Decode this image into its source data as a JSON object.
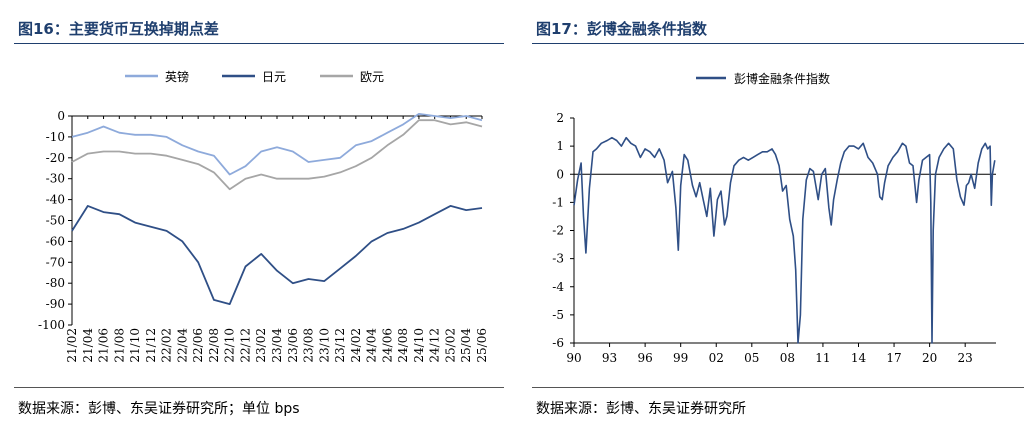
{
  "left": {
    "title": "图16：主要货币互换掉期点差",
    "source": "数据来源：彭博、东吴证券研究所；单位 bps"
  },
  "right": {
    "title": "图17：彭博金融条件指数",
    "source": "数据来源：彭博、东吴证券研究所"
  },
  "chart_data": [
    {
      "type": "line",
      "title": "",
      "xlabel": "",
      "ylabel": "",
      "ylim": [
        -100,
        0
      ],
      "yticks": [
        0,
        -10,
        -20,
        -30,
        -40,
        -50,
        -60,
        -70,
        -80,
        -90,
        -100
      ],
      "categories": [
        "21/02",
        "21/04",
        "21/06",
        "21/08",
        "21/10",
        "21/12",
        "22/02",
        "22/04",
        "22/06",
        "22/08",
        "22/10",
        "22/12",
        "23/02",
        "23/04",
        "23/06",
        "23/08",
        "23/10",
        "23/12",
        "24/02",
        "24/04",
        "24/06",
        "24/08",
        "24/10",
        "24/12",
        "25/02",
        "25/04",
        "25/06"
      ],
      "legend_position": "top",
      "grid": false,
      "series": [
        {
          "name": "英镑",
          "color": "#8eaadb",
          "values": [
            -10,
            -8,
            -5,
            -8,
            -9,
            -9,
            -10,
            -14,
            -17,
            -19,
            -28,
            -24,
            -17,
            -15,
            -17,
            -22,
            -21,
            -20,
            -14,
            -12,
            -8,
            -4,
            1,
            0,
            -1,
            0,
            -2
          ]
        },
        {
          "name": "日元",
          "color": "#2f4f86",
          "values": [
            -55,
            -43,
            -46,
            -47,
            -51,
            -53,
            -55,
            -60,
            -70,
            -88,
            -90,
            -72,
            -66,
            -74,
            -80,
            -78,
            -79,
            -73,
            -67,
            -60,
            -56,
            -54,
            -51,
            -47,
            -43,
            -45,
            -44
          ]
        },
        {
          "name": "欧元",
          "color": "#a6a6a6",
          "values": [
            -22,
            -18,
            -17,
            -17,
            -18,
            -18,
            -19,
            -21,
            -23,
            -27,
            -35,
            -30,
            -28,
            -30,
            -30,
            -30,
            -29,
            -27,
            -24,
            -20,
            -14,
            -9,
            -2,
            -2,
            -4,
            -3,
            -5
          ]
        }
      ]
    },
    {
      "type": "line",
      "title": "",
      "xlabel": "",
      "ylabel": "",
      "ylim": [
        -6,
        2
      ],
      "yticks": [
        2,
        1,
        0,
        -1,
        -2,
        -3,
        -4,
        -5,
        -6
      ],
      "xticks": [
        "90",
        "93",
        "96",
        "99",
        "02",
        "05",
        "08",
        "11",
        "14",
        "17",
        "20",
        "23"
      ],
      "xlim": [
        1990,
        2025.6
      ],
      "legend_position": "top",
      "grid": false,
      "series": [
        {
          "name": "彭博金融条件指数",
          "color": "#2f4f86",
          "x": [
            1990.0,
            1990.3,
            1990.6,
            1990.8,
            1991.0,
            1991.3,
            1991.6,
            1991.9,
            1992.3,
            1992.8,
            1993.2,
            1993.6,
            1994.0,
            1994.4,
            1994.8,
            1995.2,
            1995.6,
            1996.0,
            1996.4,
            1996.8,
            1997.2,
            1997.6,
            1997.9,
            1998.3,
            1998.6,
            1998.8,
            1999.0,
            1999.3,
            1999.6,
            2000.0,
            2000.3,
            2000.6,
            2000.9,
            2001.2,
            2001.5,
            2001.8,
            2002.1,
            2002.4,
            2002.7,
            2002.9,
            2003.2,
            2003.5,
            2003.9,
            2004.3,
            2004.7,
            2005.1,
            2005.5,
            2005.9,
            2006.3,
            2006.7,
            2007.0,
            2007.3,
            2007.6,
            2007.9,
            2008.2,
            2008.5,
            2008.7,
            2008.9,
            2009.1,
            2009.3,
            2009.6,
            2009.9,
            2010.2,
            2010.4,
            2010.6,
            2010.9,
            2011.2,
            2011.5,
            2011.7,
            2011.9,
            2012.2,
            2012.5,
            2012.8,
            2013.2,
            2013.6,
            2014.0,
            2014.4,
            2014.8,
            2015.2,
            2015.6,
            2015.8,
            2016.0,
            2016.2,
            2016.5,
            2016.9,
            2017.3,
            2017.7,
            2018.0,
            2018.3,
            2018.6,
            2018.9,
            2019.1,
            2019.4,
            2019.7,
            2020.0,
            2020.1,
            2020.2,
            2020.3,
            2020.5,
            2020.8,
            2021.2,
            2021.6,
            2022.0,
            2022.3,
            2022.6,
            2022.9,
            2023.1,
            2023.3,
            2023.5,
            2023.8,
            2024.1,
            2024.4,
            2024.7,
            2024.9,
            2025.1,
            2025.2,
            2025.3,
            2025.5
          ],
          "y": [
            -1.1,
            -0.2,
            0.4,
            -1.5,
            -2.8,
            -0.5,
            0.8,
            0.9,
            1.1,
            1.2,
            1.3,
            1.2,
            1.0,
            1.3,
            1.1,
            1.0,
            0.6,
            0.9,
            0.8,
            0.6,
            0.9,
            0.5,
            -0.3,
            0.1,
            -1.2,
            -2.7,
            -0.4,
            0.7,
            0.5,
            -0.4,
            -0.8,
            -0.3,
            -0.9,
            -1.5,
            -0.5,
            -2.2,
            -0.9,
            -0.6,
            -1.8,
            -1.5,
            -0.3,
            0.3,
            0.5,
            0.6,
            0.5,
            0.6,
            0.7,
            0.8,
            0.8,
            0.9,
            0.7,
            0.3,
            -0.6,
            -0.4,
            -1.6,
            -2.2,
            -3.4,
            -6.0,
            -5.0,
            -1.6,
            -0.2,
            0.2,
            0.1,
            -0.4,
            -0.9,
            0.0,
            0.2,
            -1.2,
            -1.8,
            -0.9,
            -0.2,
            0.4,
            0.8,
            1.0,
            1.0,
            0.9,
            1.1,
            0.6,
            0.4,
            0.0,
            -0.8,
            -0.9,
            -0.3,
            0.3,
            0.6,
            0.8,
            1.1,
            1.0,
            0.4,
            0.3,
            -1.0,
            -0.2,
            0.5,
            0.6,
            0.7,
            -1.0,
            -6.0,
            -2.0,
            0.0,
            0.6,
            0.9,
            1.1,
            0.9,
            -0.2,
            -0.8,
            -1.1,
            -0.4,
            -0.3,
            0.0,
            -0.5,
            0.4,
            0.9,
            1.1,
            0.9,
            1.0,
            -1.1,
            0.0,
            0.5
          ]
        }
      ]
    }
  ]
}
